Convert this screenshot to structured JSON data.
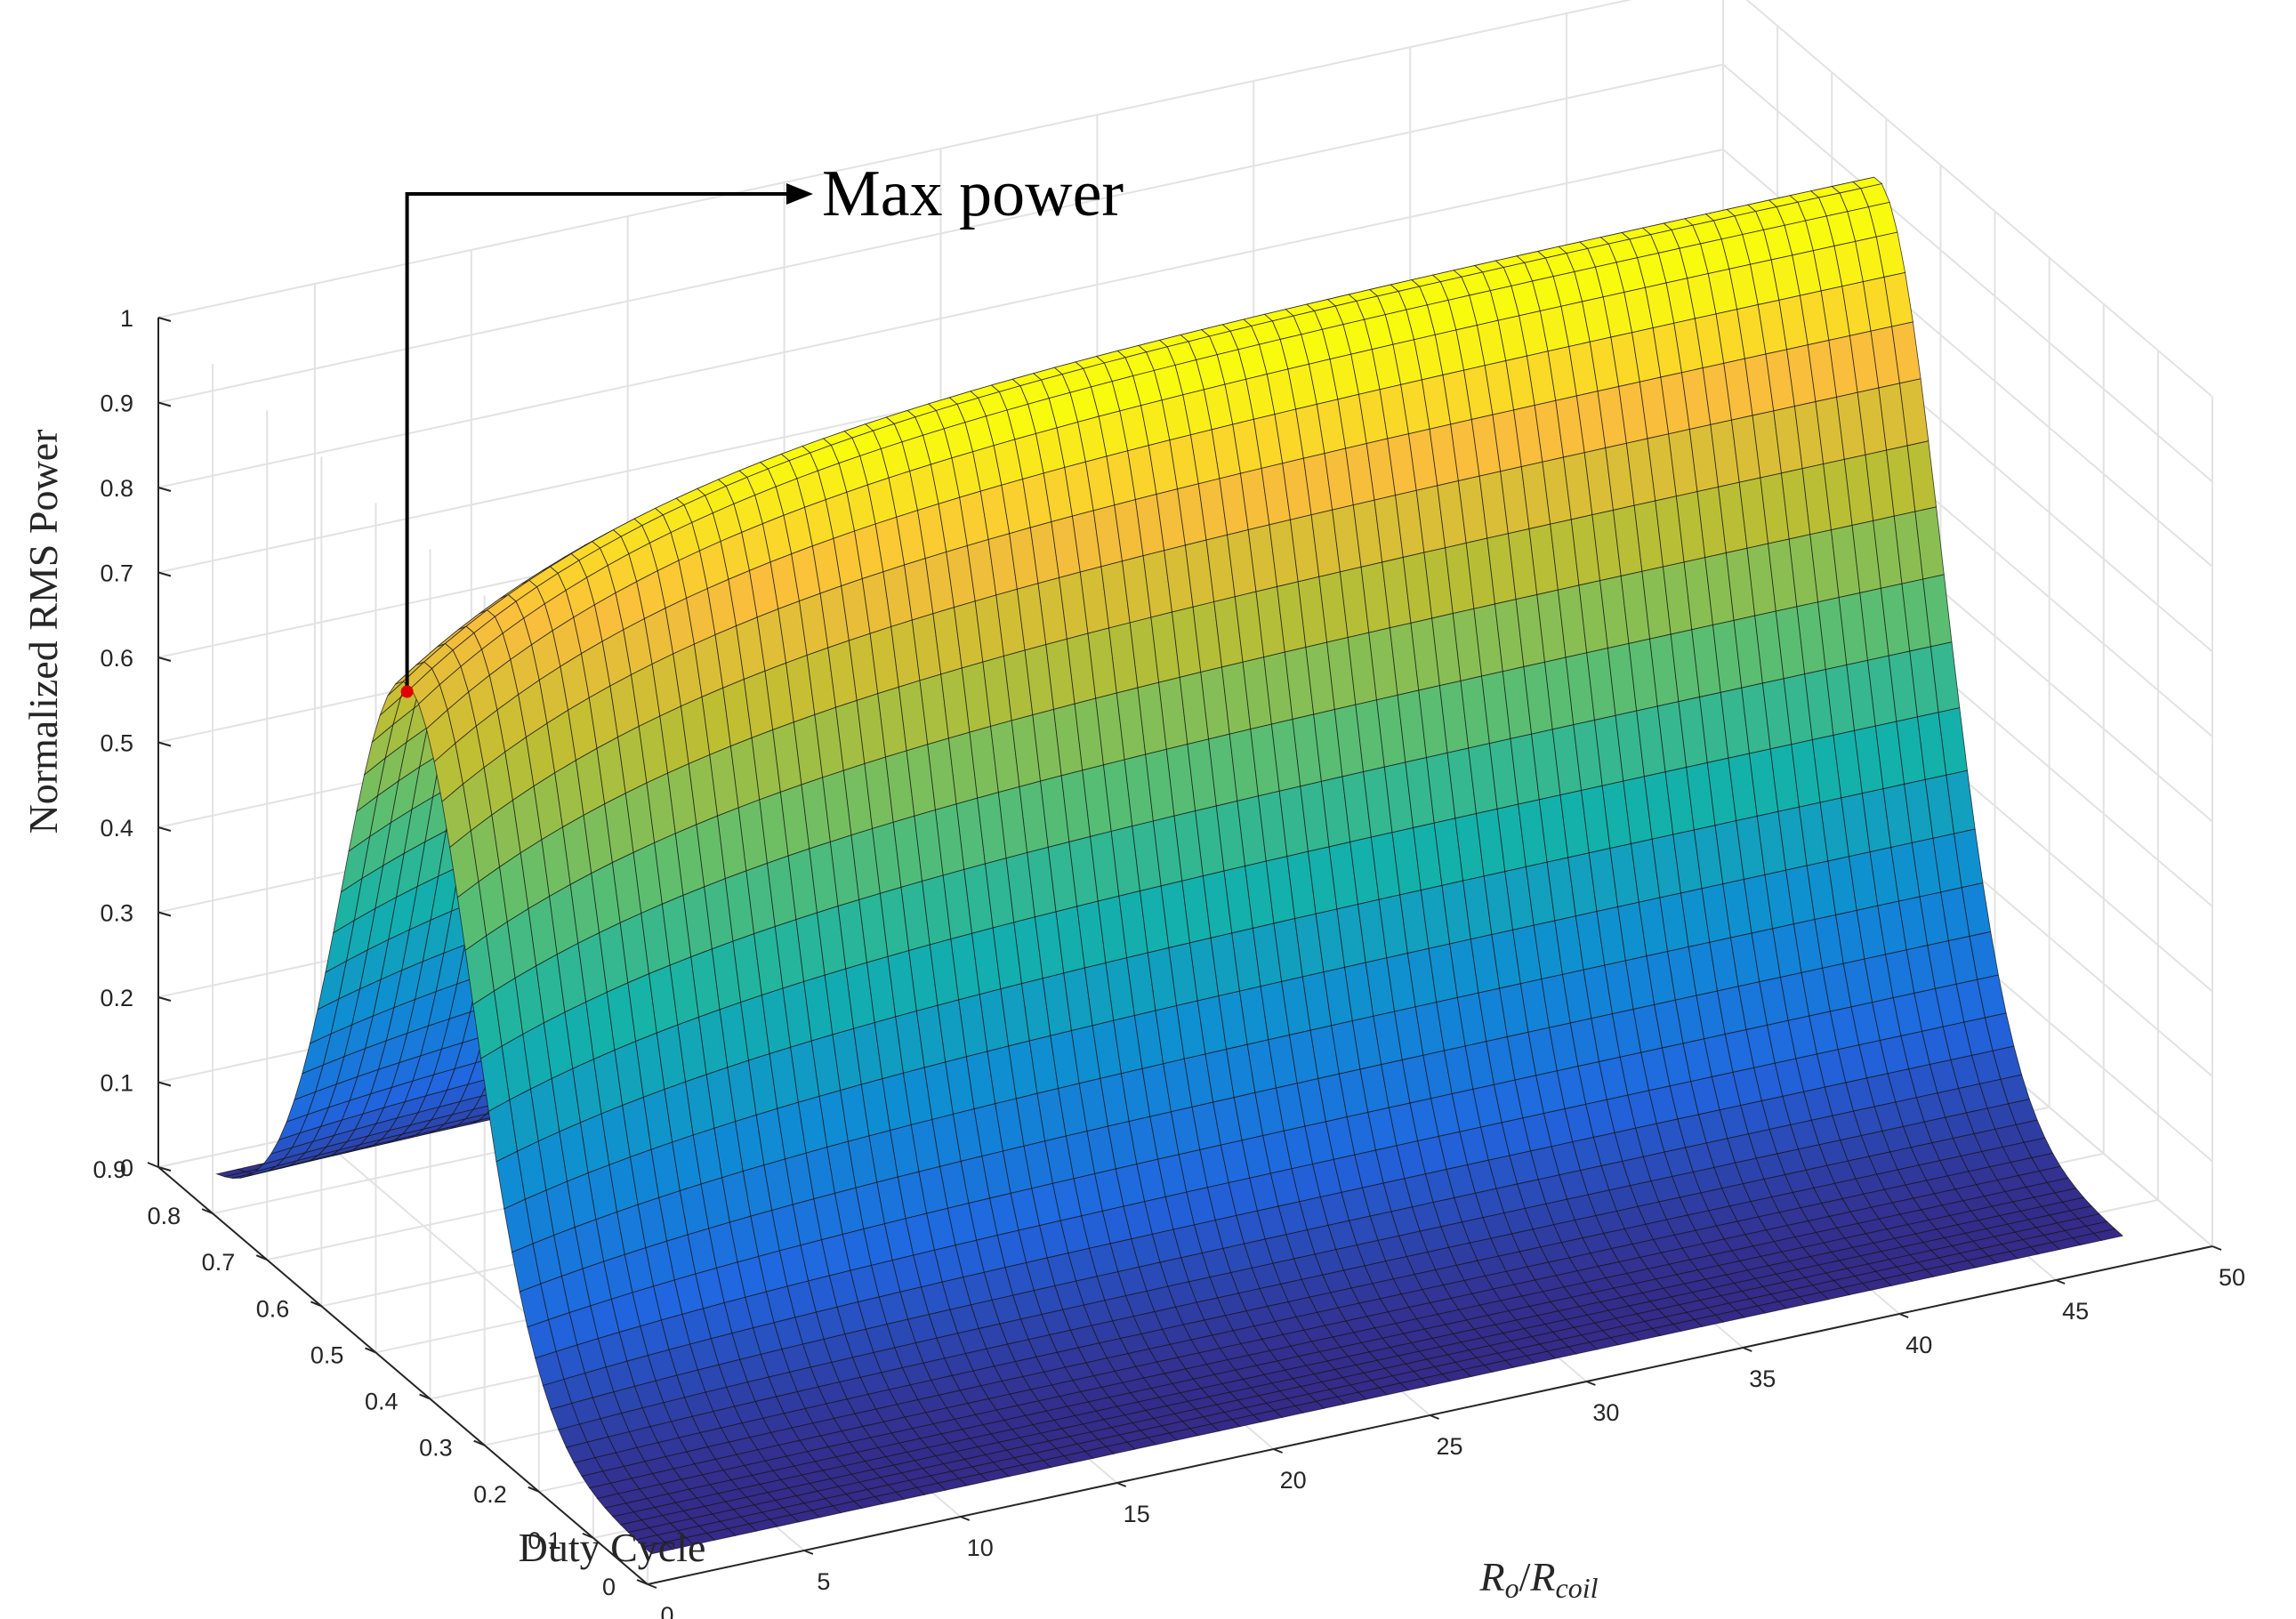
{
  "chart_data": {
    "type": "surface",
    "title": "",
    "xlabel": {
      "base": "R",
      "sub1": "o",
      "sep": "/",
      "sub2": "coil"
    },
    "ylabel": "Duty Cycle",
    "zlabel": "Normalized RMS Power",
    "x_ticks": [
      "0",
      "5",
      "10",
      "15",
      "20",
      "25",
      "30",
      "35",
      "40",
      "45",
      "50"
    ],
    "y_ticks": [
      "0",
      "0.1",
      "0.2",
      "0.3",
      "0.4",
      "0.5",
      "0.6",
      "0.7",
      "0.8",
      "0.9"
    ],
    "z_ticks": [
      "0",
      "0.1",
      "0.2",
      "0.3",
      "0.4",
      "0.5",
      "0.6",
      "0.7",
      "0.8",
      "0.9",
      "1"
    ],
    "xlim": [
      0,
      50
    ],
    "ylim": [
      0,
      0.9
    ],
    "zlim": [
      0,
      1
    ],
    "grid": true,
    "colormap": "parula",
    "surface_model": {
      "x_range": [
        1,
        48
      ],
      "y_range": [
        0.05,
        0.85
      ],
      "peak_duty": 0.5,
      "duty_width": 0.17,
      "ridge_low_x": 0.75,
      "ridge_high_x": 1.0,
      "ridge_rise": 8
    },
    "annotation": {
      "text": "Max power",
      "x": 1,
      "y": 0.5,
      "z": 0.77,
      "marker_color": "#e00000"
    }
  }
}
